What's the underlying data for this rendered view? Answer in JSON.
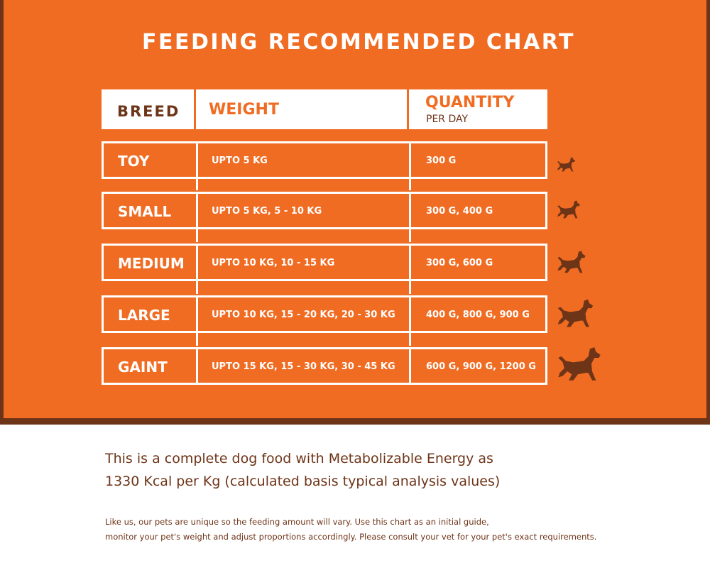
{
  "title": "FEEDING RECOMMENDED CHART",
  "header": {
    "breed": "BREED",
    "weight": "WEIGHT",
    "quantity": "QUANTITY",
    "per_day": "PER DAY"
  },
  "rows": [
    {
      "breed": "TOY",
      "weight": "UPTO 5 KG",
      "quantity": "300 G",
      "icon": "dog-icon"
    },
    {
      "breed": "SMALL",
      "weight": "UPTO 5 KG, 5 - 10 KG",
      "quantity": "300 G, 400 G",
      "icon": "dog-icon"
    },
    {
      "breed": "MEDIUM",
      "weight": "UPTO 10 KG, 10 - 15 KG",
      "quantity": "300 G, 600 G",
      "icon": "dog-icon"
    },
    {
      "breed": "LARGE",
      "weight": "UPTO 10 KG, 15 - 20 KG, 20 - 30 KG",
      "quantity": "400 G, 800 G, 900 G",
      "icon": "dog-icon"
    },
    {
      "breed": "GAINT",
      "weight": "UPTO 15 KG, 15 - 30 KG, 30 - 45 KG",
      "quantity": "600 G, 900 G, 1200 G",
      "icon": "dog-icon"
    }
  ],
  "energy_text": {
    "line1": "This is a complete dog food with Metabolizable Energy as",
    "line2": "1330 Kcal per Kg (calculated basis typical analysis values)"
  },
  "note_text": {
    "line1": "Like us, our pets are unique so the feeding amount will vary. Use this chart as an initial guide,",
    "line2": "monitor your pet's weight and adjust proportions accordingly. Please consult your vet for your pet's exact requirements."
  },
  "colors": {
    "orange": "#f06c22",
    "brown": "#6e3418",
    "white": "#ffffff"
  }
}
